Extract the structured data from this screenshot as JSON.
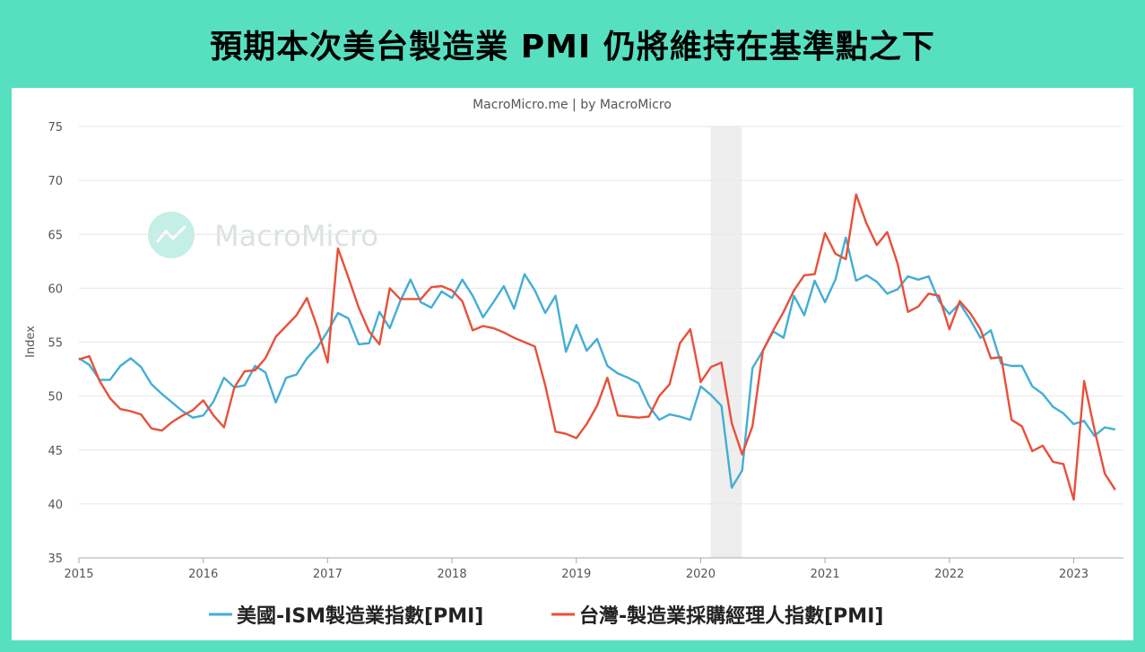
{
  "title": "預期本次美台製造業 PMI 仍將維持在基準點之下",
  "credit": "MacroMicro.me | by MacroMicro",
  "watermark": "MacroMicro",
  "chart_data": {
    "type": "line",
    "ylabel": "Index",
    "ylim": [
      35,
      75
    ],
    "yticks": [
      35,
      40,
      45,
      50,
      55,
      60,
      65,
      70,
      75
    ],
    "xlim": [
      2015.0,
      2023.4
    ],
    "xticks": [
      "2015",
      "2016",
      "2017",
      "2018",
      "2019",
      "2020",
      "2021",
      "2022",
      "2023"
    ],
    "grid": true,
    "legend": "bottom",
    "shaded_region": [
      2020.08,
      2020.33
    ],
    "series": [
      {
        "name": "美國-ISM製造業指數[PMI]",
        "color": "#42aed6",
        "start": [
          2015,
          1
        ],
        "values": [
          53.5,
          52.9,
          51.5,
          51.5,
          52.8,
          53.5,
          52.7,
          51.1,
          50.2,
          49.4,
          48.6,
          48.0,
          48.2,
          49.5,
          51.7,
          50.8,
          51.0,
          52.8,
          52.2,
          49.4,
          51.7,
          52.0,
          53.5,
          54.5,
          56.0,
          57.7,
          57.2,
          54.8,
          54.9,
          57.8,
          56.3,
          58.8,
          60.8,
          58.7,
          58.2,
          59.7,
          59.1,
          60.8,
          59.3,
          57.3,
          58.7,
          60.2,
          58.1,
          61.3,
          59.8,
          57.7,
          59.3,
          54.1,
          56.6,
          54.2,
          55.3,
          52.8,
          52.1,
          51.7,
          51.2,
          49.1,
          47.8,
          48.3,
          48.1,
          47.8,
          50.9,
          50.1,
          49.1,
          41.5,
          43.1,
          52.6,
          54.2,
          56.0,
          55.4,
          59.3,
          57.5,
          60.7,
          58.7,
          60.8,
          64.7,
          60.7,
          61.2,
          60.6,
          59.5,
          59.9,
          61.1,
          60.8,
          61.1,
          58.8,
          57.6,
          58.6,
          57.1,
          55.4,
          56.1,
          53.0,
          52.8,
          52.8,
          50.9,
          50.2,
          49.0,
          48.4,
          47.4,
          47.7,
          46.3,
          47.1,
          46.9
        ]
      },
      {
        "name": "台灣-製造業採購經理人指數[PMI]",
        "color": "#e8503a",
        "start": [
          2015,
          1
        ],
        "values": [
          53.4,
          53.7,
          51.4,
          49.8,
          48.8,
          48.6,
          48.3,
          47.0,
          46.8,
          47.6,
          48.2,
          48.7,
          49.6,
          48.2,
          47.1,
          50.8,
          52.3,
          52.4,
          53.5,
          55.5,
          56.5,
          57.5,
          59.1,
          56.4,
          53.1,
          63.7,
          61.0,
          58.2,
          56.0,
          54.8,
          60.0,
          59.0,
          59.0,
          59.0,
          60.1,
          60.2,
          59.8,
          58.8,
          56.1,
          56.5,
          56.3,
          55.9,
          55.4,
          55.0,
          54.6,
          51.0,
          46.7,
          46.5,
          46.1,
          47.4,
          49.1,
          51.7,
          48.2,
          48.1,
          48.0,
          48.1,
          50.0,
          51.1,
          54.9,
          56.2,
          51.3,
          52.7,
          53.1,
          47.5,
          44.6,
          47.2,
          54.2,
          56.1,
          57.8,
          59.8,
          61.2,
          61.3,
          65.1,
          63.2,
          62.7,
          68.7,
          66.0,
          64.0,
          65.2,
          62.3,
          57.8,
          58.3,
          59.5,
          59.3,
          56.2,
          58.8,
          57.7,
          56.2,
          53.5,
          53.6,
          47.8,
          47.2,
          44.9,
          45.4,
          43.9,
          43.7,
          40.4,
          51.4,
          46.9,
          42.8,
          41.3
        ]
      }
    ]
  }
}
